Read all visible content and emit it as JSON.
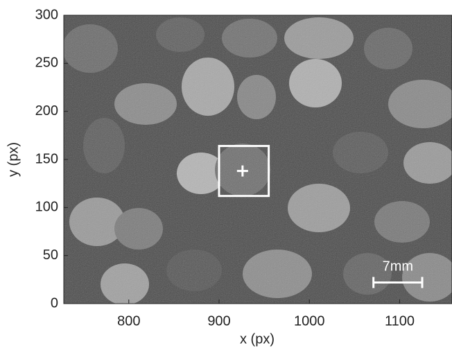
{
  "chart_data": {
    "type": "image",
    "xlabel": "x (px)",
    "ylabel": "y (px)",
    "xlim": [
      728,
      1158
    ],
    "ylim": [
      0,
      300
    ],
    "xticks": [
      800,
      900,
      1000,
      1100
    ],
    "yticks": [
      0,
      50,
      100,
      150,
      200,
      250,
      300
    ],
    "roi": {
      "x": [
        900,
        955
      ],
      "y": [
        112,
        164
      ],
      "color": "#ffffff"
    },
    "marker": {
      "x": 926,
      "y": 138,
      "color": "#ffffff"
    },
    "scale_bar": {
      "label": "7mm",
      "x": [
        1071,
        1125
      ],
      "y": 22,
      "label_y": 38,
      "color": "#ffffff"
    }
  }
}
